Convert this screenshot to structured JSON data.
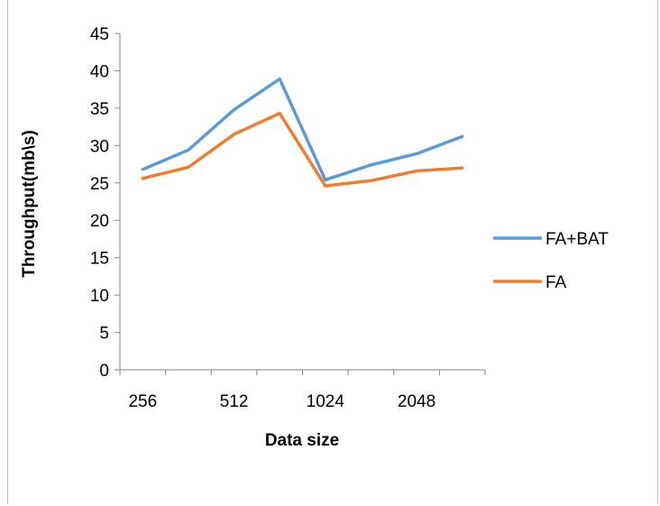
{
  "chart_data": {
    "type": "line",
    "categories": [
      "256",
      "",
      "512",
      "",
      "1024",
      "",
      "2048",
      ""
    ],
    "x_tick_labels": [
      "256",
      "512",
      "1024",
      "2048"
    ],
    "xlabel": "Data size",
    "ylabel": "Throughput(mb\\s)",
    "ylim": [
      0,
      45
    ],
    "y_ticks": [
      0,
      5,
      10,
      15,
      20,
      25,
      30,
      35,
      40,
      45
    ],
    "grid": false,
    "legend_position": "right",
    "series": [
      {
        "name": "FA+BAT",
        "color": "#5b9bd5",
        "values": [
          26.8,
          29.4,
          34.8,
          38.9,
          25.4,
          27.4,
          28.9,
          31.2
        ]
      },
      {
        "name": "FA",
        "color": "#ed7d31",
        "values": [
          25.6,
          27.1,
          31.5,
          34.3,
          24.6,
          25.3,
          26.6,
          27.0
        ]
      }
    ]
  }
}
